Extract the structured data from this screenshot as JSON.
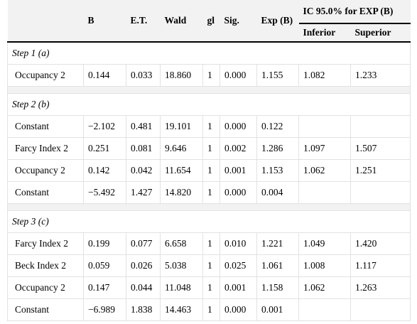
{
  "header": {
    "columns": [
      "B",
      "E.T.",
      "Wald",
      "gl",
      "Sig.",
      "Exp (B)"
    ],
    "group": "IC 95.0% for EXP (B)",
    "subcolumns": [
      "Inferior",
      "Superior"
    ]
  },
  "sections": [
    {
      "title": "Step 1 (a)",
      "rows": [
        [
          "Occupancy 2",
          "0.144",
          "0.033",
          "18.860",
          "1",
          "0.000",
          "1.155",
          "1.082",
          "1.233"
        ]
      ]
    },
    {
      "title": "Step 2 (b)",
      "rows": [
        [
          "Constant",
          "−2.102",
          "0.481",
          "19.101",
          "1",
          "0.000",
          "0.122"
        ],
        [
          "Farcy Index 2",
          "0.251",
          "0.081",
          "9.646",
          "1",
          "0.002",
          "1.286",
          "1.097",
          "1.507"
        ],
        [
          "Occupancy 2",
          "0.142",
          "0.042",
          "11.654",
          "1",
          "0.001",
          "1.153",
          "1.062",
          "1.251"
        ],
        [
          "Constant",
          "−5.492",
          "1.427",
          "14.820",
          "1",
          "0.000",
          "0.004"
        ]
      ]
    },
    {
      "title": "Step 3 (c)",
      "rows": [
        [
          "Farcy Index 2",
          "0.199",
          "0.077",
          "6.658",
          "1",
          "0.010",
          "1.221",
          "1.049",
          "1.420"
        ],
        [
          "Beck Index 2",
          "0.059",
          "0.026",
          "5.038",
          "1",
          "0.025",
          "1.061",
          "1.008",
          "1.117"
        ],
        [
          "Occupancy 2",
          "0.147",
          "0.044",
          "11.048",
          "1",
          "0.001",
          "1.158",
          "1.062",
          "1.263"
        ],
        [
          "Constant",
          "−6.989",
          "1.838",
          "14.463",
          "1",
          "0.000",
          "0.001"
        ]
      ]
    }
  ]
}
